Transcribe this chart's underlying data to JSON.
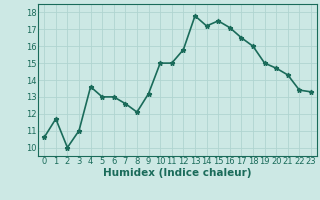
{
  "x": [
    0,
    1,
    2,
    3,
    4,
    5,
    6,
    7,
    8,
    9,
    10,
    11,
    12,
    13,
    14,
    15,
    16,
    17,
    18,
    19,
    20,
    21,
    22,
    23
  ],
  "y": [
    10.6,
    11.7,
    10.0,
    11.0,
    13.6,
    13.0,
    13.0,
    12.6,
    12.1,
    13.2,
    15.0,
    15.0,
    15.8,
    17.8,
    17.2,
    17.5,
    17.1,
    16.5,
    16.0,
    15.0,
    14.7,
    14.3,
    13.4,
    13.3
  ],
  "line_color": "#1a6b5a",
  "marker": "*",
  "marker_size": 3.5,
  "bg_color": "#cce8e4",
  "grid_color": "#b0d4d0",
  "xlabel": "Humidex (Indice chaleur)",
  "ylabel": "",
  "xlim": [
    -0.5,
    23.5
  ],
  "ylim": [
    9.5,
    18.5
  ],
  "yticks": [
    10,
    11,
    12,
    13,
    14,
    15,
    16,
    17,
    18
  ],
  "xticks": [
    0,
    1,
    2,
    3,
    4,
    5,
    6,
    7,
    8,
    9,
    10,
    11,
    12,
    13,
    14,
    15,
    16,
    17,
    18,
    19,
    20,
    21,
    22,
    23
  ],
  "tick_color": "#1a6b5a",
  "tick_label_fontsize": 6,
  "xlabel_fontsize": 7.5,
  "line_width": 1.2
}
